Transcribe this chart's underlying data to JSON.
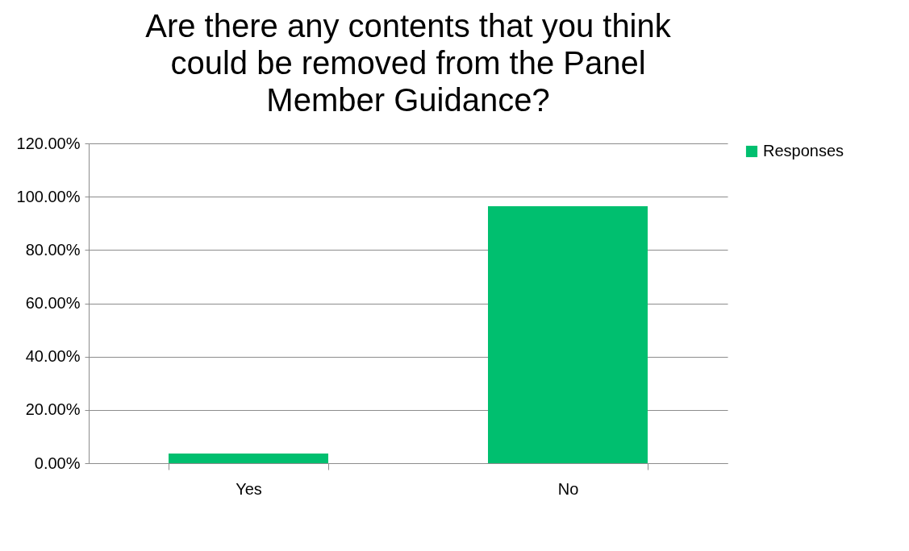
{
  "chart_data": {
    "type": "bar",
    "title": "Are there any contents that you think\ncould be removed from the Panel\nMember Guidance?",
    "categories": [
      "Yes",
      "No"
    ],
    "series": [
      {
        "name": "Responses",
        "color": "#00bf6f",
        "values": [
          3.6,
          96.4
        ]
      }
    ],
    "ylim": [
      0,
      120
    ],
    "yticks": [
      {
        "value": 0,
        "label": "0.00%"
      },
      {
        "value": 20,
        "label": "20.00%"
      },
      {
        "value": 40,
        "label": "40.00%"
      },
      {
        "value": 60,
        "label": "60.00%"
      },
      {
        "value": 80,
        "label": "80.00%"
      },
      {
        "value": 100,
        "label": "100.00%"
      },
      {
        "value": 120,
        "label": "120.00%"
      }
    ],
    "grid": "y",
    "legend": "right"
  }
}
